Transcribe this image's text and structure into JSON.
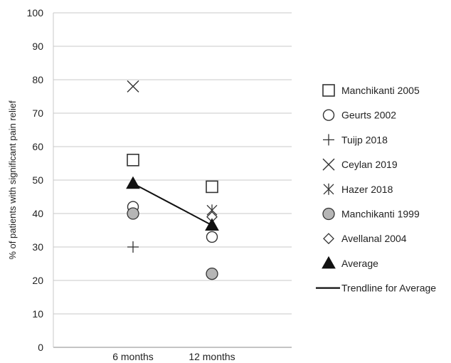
{
  "chart_data": {
    "type": "scatter",
    "title": "",
    "xlabel": "",
    "ylabel": "% of patients with significant pain relief",
    "categories": [
      "6 months",
      "12 months"
    ],
    "ylim": [
      0,
      100
    ],
    "yticks": [
      "0",
      "10",
      "20",
      "30",
      "40",
      "50",
      "60",
      "70",
      "80",
      "90",
      "100"
    ],
    "grid": true,
    "legend_position": "right",
    "series": [
      {
        "name": "Manchikanti 2005",
        "marker": "square-open",
        "values": [
          56,
          48
        ]
      },
      {
        "name": "Geurts 2002",
        "marker": "circle-open",
        "values": [
          42,
          33
        ]
      },
      {
        "name": "Tuijp 2018",
        "marker": "plus",
        "values": [
          30,
          null
        ]
      },
      {
        "name": "Ceylan 2019",
        "marker": "x",
        "values": [
          78,
          null
        ]
      },
      {
        "name": "Hazer 2018",
        "marker": "asterisk",
        "values": [
          null,
          41
        ]
      },
      {
        "name": "Manchikanti 1999",
        "marker": "circle-filled-gray",
        "values": [
          40,
          22
        ]
      },
      {
        "name": "Avellanal 2004",
        "marker": "diamond-open",
        "values": [
          null,
          39
        ]
      },
      {
        "name": "Average",
        "marker": "triangle-filled",
        "values": [
          49,
          36.5
        ]
      }
    ],
    "trendline": {
      "name": "Trendline for Average",
      "values": [
        49,
        36.5
      ]
    }
  }
}
